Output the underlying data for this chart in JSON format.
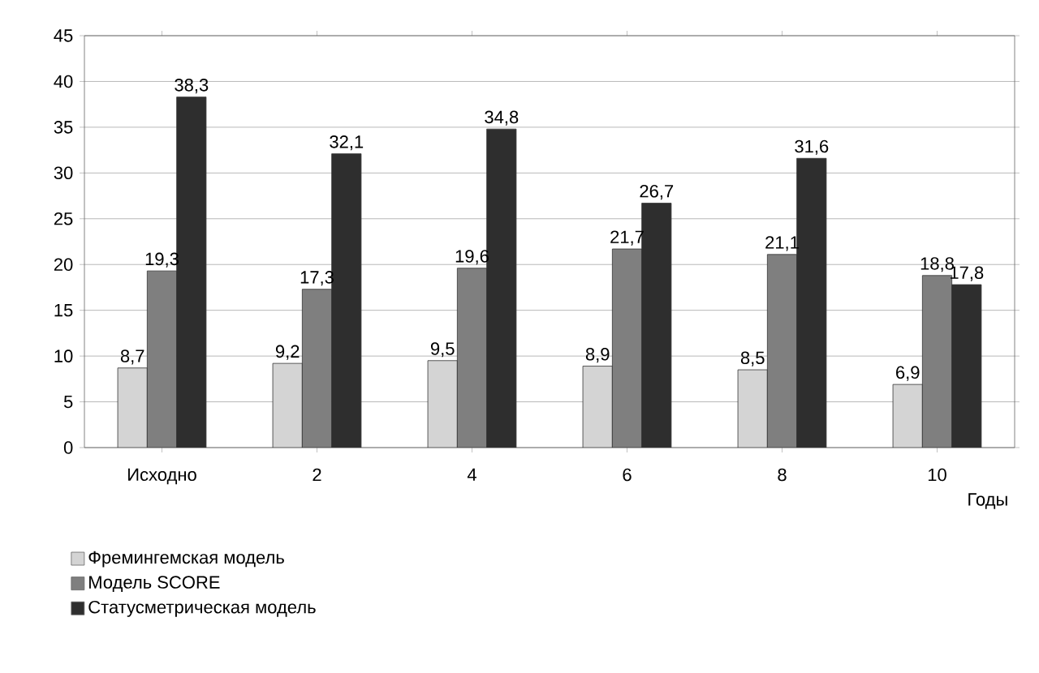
{
  "chart_data": {
    "type": "bar",
    "xlabel": "Годы",
    "categories": [
      "Исходно",
      "2",
      "4",
      "6",
      "8",
      "10"
    ],
    "series": [
      {
        "name": "Фремингемская модель",
        "color": "#d4d4d4",
        "values": [
          8.7,
          9.2,
          9.5,
          8.9,
          8.5,
          6.9
        ],
        "value_labels": [
          "8,7",
          "9,2",
          "9,5",
          "8,9",
          "8,5",
          "6,9"
        ]
      },
      {
        "name": "Модель SCORE",
        "color": "#7f7f7f",
        "values": [
          19.3,
          17.3,
          19.6,
          21.7,
          21.1,
          18.8
        ],
        "value_labels": [
          "19,3",
          "17,3",
          "19,6",
          "21,7",
          "21,1",
          "18,8"
        ]
      },
      {
        "name": "Статусметрическая модель",
        "color": "#2e2e2e",
        "values": [
          38.3,
          32.1,
          34.8,
          26.7,
          31.6,
          17.8
        ],
        "value_labels": [
          "38,3",
          "32,1",
          "34,8",
          "26,7",
          "31,6",
          "17,8"
        ]
      }
    ],
    "ylim": [
      0,
      45
    ],
    "yticks": [
      0,
      5,
      10,
      15,
      20,
      25,
      30,
      35,
      40,
      45
    ],
    "grid": "y",
    "legend": "bottom left"
  }
}
